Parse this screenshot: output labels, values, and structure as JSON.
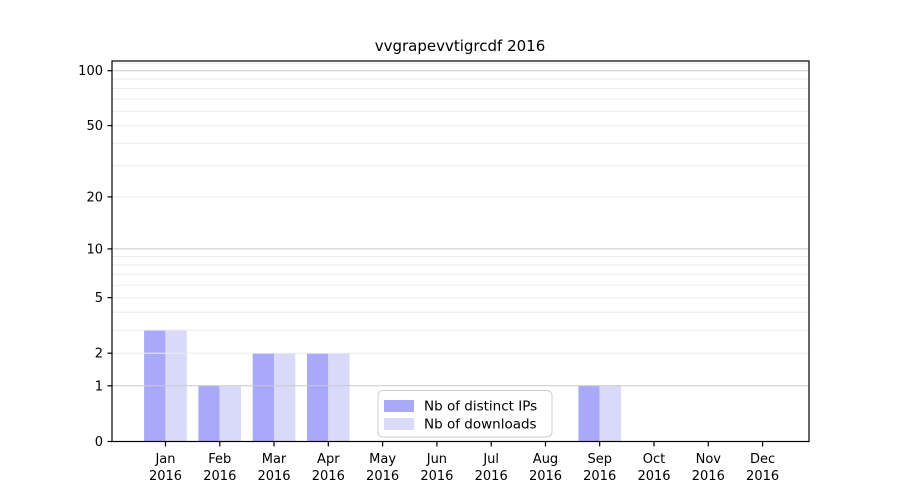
{
  "chart_data": {
    "type": "bar",
    "title": "vvgrapevvtigrcdf 2016",
    "year": "2016",
    "categories": [
      "Jan",
      "Feb",
      "Mar",
      "Apr",
      "May",
      "Jun",
      "Jul",
      "Aug",
      "Sep",
      "Oct",
      "Nov",
      "Dec"
    ],
    "series": [
      {
        "name": "Nb of distinct IPs",
        "color": "#a9a9fa",
        "values": [
          3,
          1,
          2,
          2,
          0,
          0,
          0,
          0,
          1,
          0,
          0,
          0
        ]
      },
      {
        "name": "Nb of downloads",
        "color": "#d9d9fa",
        "values": [
          3,
          1,
          2,
          2,
          0,
          0,
          0,
          0,
          1,
          0,
          0,
          0
        ]
      }
    ],
    "xlabel": "",
    "ylabel": "",
    "yscale": "log10(1+v)",
    "ylim": [
      0,
      113
    ],
    "yticks": [
      0,
      1,
      2,
      5,
      10,
      20,
      50,
      100
    ],
    "major_gridlines": [
      1,
      10,
      100
    ],
    "minor_gridlines": [
      2,
      3,
      4,
      5,
      6,
      7,
      8,
      9,
      20,
      30,
      40,
      50,
      60,
      70,
      80,
      90,
      110
    ],
    "grid": "on",
    "legend_position": "lower center",
    "colors": {
      "spine": "#000000",
      "major_grid": "#c9c9c9",
      "minor_grid": "#ebebeb",
      "legend_border": "#cccccc",
      "background": "#ffffff"
    }
  }
}
